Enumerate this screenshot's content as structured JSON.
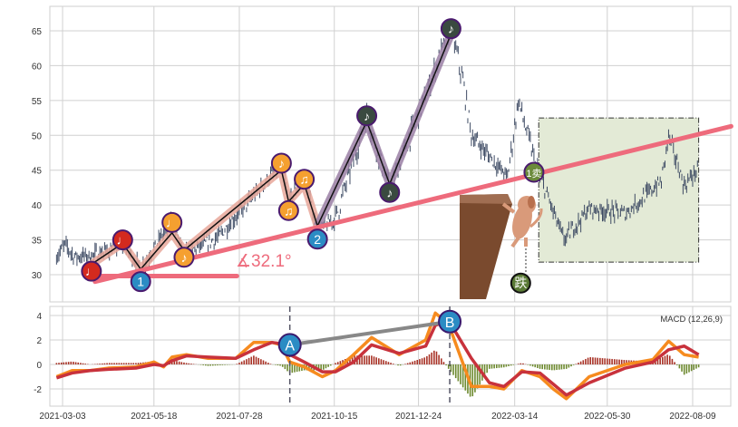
{
  "chart_data": [
    {
      "type": "candlestick",
      "ylim": [
        27,
        67
      ],
      "y_ticks": [
        30,
        35,
        40,
        45,
        50,
        55,
        60,
        65
      ],
      "grid": true,
      "price_path": [
        [
          "2021-02-26",
          32.6
        ],
        [
          "2021-03-05",
          34.3
        ],
        [
          "2021-03-13",
          32.6
        ],
        [
          "2021-03-26",
          32.7
        ],
        [
          "2021-04-10",
          33.5
        ],
        [
          "2021-04-22",
          34.5
        ],
        [
          "2021-05-07",
          30.8
        ],
        [
          "2021-06-02",
          37.8
        ],
        [
          "2021-06-12",
          33.0
        ],
        [
          "2021-07-10",
          35.3
        ],
        [
          "2021-09-01",
          46.0
        ],
        [
          "2021-09-07",
          40.5
        ],
        [
          "2021-09-20",
          44.0
        ],
        [
          "2021-10-01",
          36.2
        ],
        [
          "2021-10-16",
          38.0
        ],
        [
          "2021-11-11",
          52.8
        ],
        [
          "2021-11-30",
          42.1
        ],
        [
          "2022-01-20",
          65.5
        ],
        [
          "2022-01-30",
          57.7
        ],
        [
          "2022-02-06",
          50.0
        ],
        [
          "2022-03-08",
          44.0
        ],
        [
          "2022-03-17",
          55.0
        ],
        [
          "2022-03-31",
          46.0
        ],
        [
          "2022-04-24",
          35.0
        ],
        [
          "2022-05-15",
          39.5
        ],
        [
          "2022-06-14",
          38.8
        ],
        [
          "2022-07-14",
          43.4
        ],
        [
          "2022-07-20",
          50.0
        ],
        [
          "2022-08-02",
          42.7
        ],
        [
          "2022-08-14",
          45.4
        ]
      ],
      "markers": [
        {
          "date": "2021-03-27",
          "price": 30.5,
          "label": "♩",
          "color": "#d42a1e"
        },
        {
          "date": "2021-04-22",
          "price": 35.0,
          "label": "♩",
          "color": "#d42a1e"
        },
        {
          "date": "2021-05-07",
          "price": 29.0,
          "label": "1",
          "color": "#2b8cc4"
        },
        {
          "date": "2021-06-02",
          "price": 37.5,
          "label": "♩",
          "color": "#f5a030"
        },
        {
          "date": "2021-06-12",
          "price": 32.5,
          "label": "♪",
          "color": "#f5a030"
        },
        {
          "date": "2021-09-01",
          "price": 46.0,
          "label": "♪",
          "color": "#f5a030"
        },
        {
          "date": "2021-09-07",
          "price": 39.2,
          "label": "♫",
          "color": "#f5a030"
        },
        {
          "date": "2021-09-20",
          "price": 43.7,
          "label": "♫",
          "color": "#f5a030"
        },
        {
          "date": "2021-10-01",
          "price": 35.1,
          "label": "2",
          "color": "#2b8cc4"
        },
        {
          "date": "2021-11-11",
          "price": 52.8,
          "label": "♪",
          "color": "#3a4a40"
        },
        {
          "date": "2021-11-30",
          "price": 41.8,
          "label": "♪",
          "color": "#3a4a40"
        },
        {
          "date": "2022-01-20",
          "price": 65.3,
          "label": "♪",
          "color": "#3a4a40"
        },
        {
          "date": "2022-03-30",
          "price": 44.7,
          "label": "1卖",
          "color": "#6b8a3a"
        },
        {
          "date": "2022-03-19",
          "price": 28.8,
          "label": "跌",
          "color": "#5a7a35"
        }
      ],
      "zigzag_light": [
        [
          "2021-03-27",
          31.5
        ],
        [
          "2021-04-22",
          34.5
        ],
        [
          "2021-05-07",
          30.8
        ],
        [
          "2021-06-02",
          36.0
        ],
        [
          "2021-06-12",
          33.5
        ],
        [
          "2021-09-01",
          45.0
        ],
        [
          "2021-09-07",
          40.5
        ],
        [
          "2021-09-20",
          43.0
        ],
        [
          "2021-10-01",
          37.0
        ]
      ],
      "zigzag_dark": [
        [
          "2021-10-01",
          37.0
        ],
        [
          "2021-11-11",
          52.0
        ],
        [
          "2021-11-30",
          43.0
        ],
        [
          "2022-01-20",
          64.5
        ]
      ],
      "trendline": [
        [
          "2021-03-30",
          29.0
        ],
        [
          "2022-09-10",
          51.3
        ]
      ],
      "angle_baseline": [
        [
          "2021-03-30",
          29.8
        ],
        [
          "2021-07-26",
          29.8
        ]
      ],
      "angle_label": "∡32.1°",
      "zone_box": {
        "from": "2022-04-03",
        "to": "2022-08-14",
        "low": 31.8,
        "high": 52.5
      },
      "colors": {
        "candle": "#3d4a63",
        "trend": "#ee6b7c",
        "zone": "#e3ead6",
        "cliff": "#7a4a2e"
      }
    },
    {
      "type": "line",
      "title": "MACD (12,26,9)",
      "ylim": [
        -3.3,
        4.6
      ],
      "y_ticks": [
        -2,
        0,
        2,
        4
      ],
      "x_ticks": [
        "2021-03-03",
        "2021-05-18",
        "2021-07-28",
        "2021-10-15",
        "2021-12-24",
        "2022-03-14",
        "2022-05-30",
        "2022-08-09"
      ],
      "dates": [
        "2021-02-26",
        "2021-03-11",
        "2021-03-26",
        "2021-04-10",
        "2021-05-03",
        "2021-05-18",
        "2021-05-26",
        "2021-06-02",
        "2021-06-14",
        "2021-07-02",
        "2021-07-25",
        "2021-08-09",
        "2021-08-24",
        "2021-09-01",
        "2021-09-08",
        "2021-09-20",
        "2021-10-05",
        "2021-10-16",
        "2021-10-31",
        "2021-11-15",
        "2021-12-08",
        "2021-12-30",
        "2022-01-07",
        "2022-01-18",
        "2022-02-06",
        "2022-02-21",
        "2022-03-05",
        "2022-03-20",
        "2022-04-04",
        "2022-04-15",
        "2022-04-26",
        "2022-05-15",
        "2022-06-14",
        "2022-07-07",
        "2022-07-20",
        "2022-08-02",
        "2022-08-14"
      ],
      "series": [
        {
          "values": [
            -1.0,
            -0.5,
            -0.5,
            -0.3,
            -0.2,
            0.2,
            -0.2,
            0.6,
            0.8,
            0.5,
            0.5,
            1.8,
            1.8,
            1.6,
            0.2,
            -0.2,
            -1.0,
            -0.5,
            0.8,
            2.2,
            0.8,
            2.0,
            4.2,
            3.3,
            -1.8,
            -1.8,
            -2.0,
            -0.5,
            -1.0,
            -2.0,
            -2.8,
            -1.0,
            0.0,
            0.4,
            1.9,
            0.8,
            0.6
          ],
          "color": "#f68b1f"
        },
        {
          "values": [
            -1.1,
            -0.7,
            -0.5,
            -0.4,
            -0.3,
            0.0,
            -0.1,
            0.3,
            0.7,
            0.6,
            0.5,
            1.2,
            1.8,
            1.7,
            0.8,
            0.2,
            -0.6,
            -0.6,
            0.2,
            1.6,
            0.9,
            1.5,
            3.2,
            3.6,
            0.5,
            -1.5,
            -1.8,
            -0.6,
            -0.7,
            -1.6,
            -2.5,
            -1.5,
            -0.3,
            0.2,
            1.2,
            1.5,
            0.8
          ],
          "color": "#c8323c"
        }
      ],
      "points": [
        {
          "label": "A",
          "date": "2021-09-08",
          "value": 1.6
        },
        {
          "label": "B",
          "date": "2022-01-19",
          "value": 3.5
        }
      ],
      "hist_colors": {
        "pos": "#a83226",
        "neg": "#6e8a30"
      }
    }
  ]
}
